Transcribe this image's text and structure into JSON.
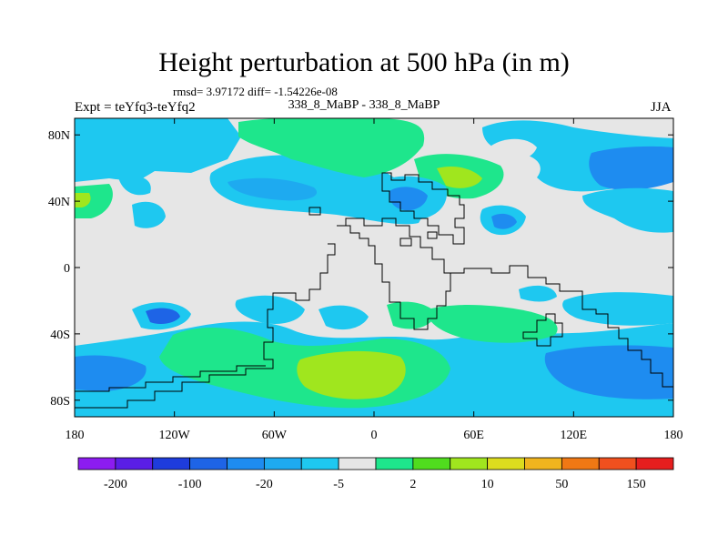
{
  "title": "Height perturbation at 500 hPa (in m)",
  "stats_text": "rmsd= 3.97172 diff= -1.54226e-08",
  "expt_text": "Expt = teYfq3-teYfq2",
  "cases_text": "338_8_MaBP - 338_8_MaBP",
  "season": "JJA",
  "axes": {
    "y_ticks": [
      {
        "label": "80N",
        "value": 80
      },
      {
        "label": "40N",
        "value": 40
      },
      {
        "label": "0",
        "value": 0
      },
      {
        "label": "40S",
        "value": -40
      },
      {
        "label": "80S",
        "value": -80
      }
    ],
    "x_ticks": [
      {
        "label": "180",
        "value": -180
      },
      {
        "label": "120W",
        "value": -120
      },
      {
        "label": "60W",
        "value": -60
      },
      {
        "label": "0",
        "value": 0
      },
      {
        "label": "60E",
        "value": 60
      },
      {
        "label": "120E",
        "value": 120
      },
      {
        "label": "180",
        "value": 180
      }
    ],
    "lon_range": [
      -180,
      180
    ],
    "lat_range": [
      -90,
      90
    ]
  },
  "colorbar": {
    "colors": [
      "#8c1cf0",
      "#5a1ee6",
      "#1e3cdc",
      "#1e64e6",
      "#1e8cf0",
      "#1eaaf0",
      "#1ec8f0",
      "#e6e6e6",
      "#1ee68c",
      "#50dc1e",
      "#a0e61e",
      "#dcdc1e",
      "#f0b41e",
      "#f07814",
      "#f0501e",
      "#e61e1e"
    ],
    "labels": [
      "-200",
      "-100",
      "-20",
      "-5",
      "2",
      "10",
      "50",
      "150"
    ]
  },
  "colors": {
    "background_field": "#e6e6e6",
    "coastline": "#000000"
  }
}
